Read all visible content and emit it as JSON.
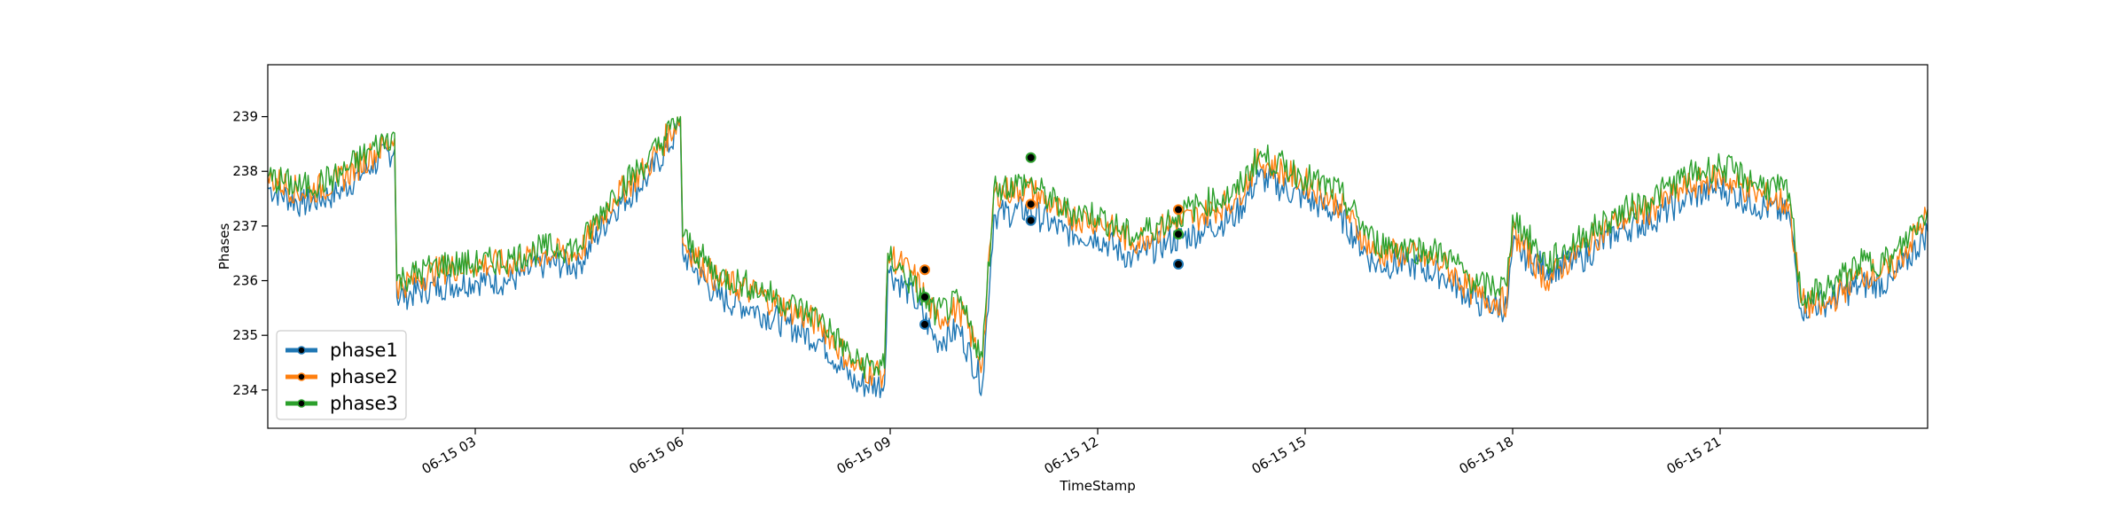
{
  "chart_data": {
    "type": "line",
    "title": "",
    "xlabel": "TimeStamp",
    "ylabel": "Phases",
    "grid": false,
    "legend_position": "lower-left",
    "x_range": [
      "2023-06-15 00:00",
      "2023-06-16 00:00"
    ],
    "ylim": [
      233.3,
      239.95
    ],
    "y_ticks": [
      234,
      235,
      236,
      237,
      238,
      239
    ],
    "x_ticks": [
      {
        "t": "2023-06-15 03:00",
        "label": "06-15 03"
      },
      {
        "t": "2023-06-15 06:00",
        "label": "06-15 06"
      },
      {
        "t": "2023-06-15 09:00",
        "label": "06-15 09"
      },
      {
        "t": "2023-06-15 12:00",
        "label": "06-15 12"
      },
      {
        "t": "2023-06-15 15:00",
        "label": "06-15 15"
      },
      {
        "t": "2023-06-15 18:00",
        "label": "06-15 18"
      },
      {
        "t": "2023-06-15 21:00",
        "label": "06-15 21"
      }
    ],
    "series": [
      {
        "name": "phase1",
        "color": "#1f77b4",
        "points": [
          [
            "2023-06-15 00:00",
            237.7
          ],
          [
            "2023-06-15 00:30",
            237.4
          ],
          [
            "2023-06-15 01:00",
            237.6
          ],
          [
            "2023-06-15 01:30",
            238.1
          ],
          [
            "2023-06-15 01:50",
            238.4
          ],
          [
            "2023-06-15 01:52",
            235.7
          ],
          [
            "2023-06-15 02:30",
            235.9
          ],
          [
            "2023-06-15 03:00",
            236.0
          ],
          [
            "2023-06-15 03:30",
            236.0
          ],
          [
            "2023-06-15 04:00",
            236.3
          ],
          [
            "2023-06-15 04:30",
            236.3
          ],
          [
            "2023-06-15 05:00",
            237.3
          ],
          [
            "2023-06-15 05:30",
            237.9
          ],
          [
            "2023-06-15 05:58",
            238.8
          ],
          [
            "2023-06-15 06:00",
            236.5
          ],
          [
            "2023-06-15 06:30",
            235.7
          ],
          [
            "2023-06-15 07:00",
            235.5
          ],
          [
            "2023-06-15 07:30",
            235.2
          ],
          [
            "2023-06-15 08:00",
            234.9
          ],
          [
            "2023-06-15 08:30",
            234.1
          ],
          [
            "2023-06-15 08:55",
            234.1
          ],
          [
            "2023-06-15 08:58",
            236.2
          ],
          [
            "2023-06-15 09:20",
            235.7
          ],
          [
            "2023-06-15 09:40",
            234.9
          ],
          [
            "2023-06-15 10:00",
            235.1
          ],
          [
            "2023-06-15 10:20",
            234.1
          ],
          [
            "2023-06-15 10:30",
            237.2
          ],
          [
            "2023-06-15 11:00",
            237.3
          ],
          [
            "2023-06-15 11:30",
            236.9
          ],
          [
            "2023-06-15 12:00",
            236.8
          ],
          [
            "2023-06-15 12:30",
            236.4
          ],
          [
            "2023-06-15 13:00",
            236.7
          ],
          [
            "2023-06-15 13:30",
            236.9
          ],
          [
            "2023-06-15 14:00",
            237.2
          ],
          [
            "2023-06-15 14:20",
            237.9
          ],
          [
            "2023-06-15 15:00",
            237.5
          ],
          [
            "2023-06-15 15:30",
            237.2
          ],
          [
            "2023-06-15 16:00",
            236.3
          ],
          [
            "2023-06-15 16:30",
            236.3
          ],
          [
            "2023-06-15 17:00",
            236.1
          ],
          [
            "2023-06-15 17:30",
            235.6
          ],
          [
            "2023-06-15 17:55",
            235.5
          ],
          [
            "2023-06-15 18:00",
            236.6
          ],
          [
            "2023-06-15 18:30",
            236.2
          ],
          [
            "2023-06-15 19:00",
            236.4
          ],
          [
            "2023-06-15 19:30",
            236.9
          ],
          [
            "2023-06-15 20:00",
            237.1
          ],
          [
            "2023-06-15 20:30",
            237.5
          ],
          [
            "2023-06-15 21:00",
            237.7
          ],
          [
            "2023-06-15 21:30",
            237.4
          ],
          [
            "2023-06-15 22:00",
            237.2
          ],
          [
            "2023-06-15 22:10",
            235.5
          ],
          [
            "2023-06-15 22:30",
            235.6
          ],
          [
            "2023-06-15 23:00",
            235.9
          ],
          [
            "2023-06-15 23:30",
            236.0
          ],
          [
            "2023-06-16 00:00",
            236.9
          ]
        ]
      },
      {
        "name": "phase2",
        "color": "#ff7f0e",
        "points": [
          [
            "2023-06-15 00:00",
            237.9
          ],
          [
            "2023-06-15 00:30",
            237.6
          ],
          [
            "2023-06-15 01:00",
            237.8
          ],
          [
            "2023-06-15 01:30",
            238.3
          ],
          [
            "2023-06-15 01:50",
            238.6
          ],
          [
            "2023-06-15 01:52",
            235.9
          ],
          [
            "2023-06-15 02:30",
            236.2
          ],
          [
            "2023-06-15 03:00",
            236.3
          ],
          [
            "2023-06-15 03:30",
            236.3
          ],
          [
            "2023-06-15 04:00",
            236.5
          ],
          [
            "2023-06-15 04:30",
            236.5
          ],
          [
            "2023-06-15 05:00",
            237.5
          ],
          [
            "2023-06-15 05:30",
            238.1
          ],
          [
            "2023-06-15 05:58",
            239.0
          ],
          [
            "2023-06-15 06:00",
            236.7
          ],
          [
            "2023-06-15 06:30",
            236.0
          ],
          [
            "2023-06-15 07:00",
            235.8
          ],
          [
            "2023-06-15 07:30",
            235.5
          ],
          [
            "2023-06-15 08:00",
            235.2
          ],
          [
            "2023-06-15 08:30",
            234.4
          ],
          [
            "2023-06-15 08:55",
            234.3
          ],
          [
            "2023-06-15 08:58",
            236.5
          ],
          [
            "2023-06-15 09:20",
            236.1
          ],
          [
            "2023-06-15 09:40",
            235.3
          ],
          [
            "2023-06-15 10:00",
            235.5
          ],
          [
            "2023-06-15 10:20",
            234.5
          ],
          [
            "2023-06-15 10:30",
            237.6
          ],
          [
            "2023-06-15 11:00",
            237.7
          ],
          [
            "2023-06-15 11:30",
            237.2
          ],
          [
            "2023-06-15 12:00",
            237.1
          ],
          [
            "2023-06-15 12:30",
            236.7
          ],
          [
            "2023-06-15 13:00",
            237.0
          ],
          [
            "2023-06-15 13:30",
            237.2
          ],
          [
            "2023-06-15 14:00",
            237.5
          ],
          [
            "2023-06-15 14:20",
            238.2
          ],
          [
            "2023-06-15 15:00",
            237.8
          ],
          [
            "2023-06-15 15:30",
            237.4
          ],
          [
            "2023-06-15 16:00",
            236.5
          ],
          [
            "2023-06-15 16:30",
            236.5
          ],
          [
            "2023-06-15 17:00",
            236.3
          ],
          [
            "2023-06-15 17:30",
            235.7
          ],
          [
            "2023-06-15 17:55",
            235.6
          ],
          [
            "2023-06-15 18:00",
            236.9
          ],
          [
            "2023-06-15 18:30",
            236.0
          ],
          [
            "2023-06-15 19:00",
            236.6
          ],
          [
            "2023-06-15 19:30",
            237.1
          ],
          [
            "2023-06-15 20:00",
            237.3
          ],
          [
            "2023-06-15 20:30",
            237.7
          ],
          [
            "2023-06-15 21:00",
            237.9
          ],
          [
            "2023-06-15 21:30",
            237.6
          ],
          [
            "2023-06-15 22:00",
            237.4
          ],
          [
            "2023-06-15 22:10",
            235.6
          ],
          [
            "2023-06-15 22:30",
            235.5
          ],
          [
            "2023-06-15 23:00",
            236.1
          ],
          [
            "2023-06-15 23:30",
            236.2
          ],
          [
            "2023-06-16 00:00",
            237.2
          ]
        ]
      },
      {
        "name": "phase3",
        "color": "#2ca02c",
        "points": [
          [
            "2023-06-15 00:00",
            237.9
          ],
          [
            "2023-06-15 00:30",
            237.7
          ],
          [
            "2023-06-15 01:00",
            237.9
          ],
          [
            "2023-06-15 01:30",
            238.4
          ],
          [
            "2023-06-15 01:50",
            238.7
          ],
          [
            "2023-06-15 01:52",
            236.0
          ],
          [
            "2023-06-15 02:30",
            236.3
          ],
          [
            "2023-06-15 03:00",
            236.3
          ],
          [
            "2023-06-15 03:30",
            236.4
          ],
          [
            "2023-06-15 04:00",
            236.6
          ],
          [
            "2023-06-15 04:30",
            236.6
          ],
          [
            "2023-06-15 05:00",
            237.6
          ],
          [
            "2023-06-15 05:30",
            238.2
          ],
          [
            "2023-06-15 05:58",
            239.0
          ],
          [
            "2023-06-15 06:00",
            236.8
          ],
          [
            "2023-06-15 06:30",
            236.1
          ],
          [
            "2023-06-15 07:00",
            235.9
          ],
          [
            "2023-06-15 07:30",
            235.6
          ],
          [
            "2023-06-15 08:00",
            235.3
          ],
          [
            "2023-06-15 08:30",
            234.5
          ],
          [
            "2023-06-15 08:55",
            234.4
          ],
          [
            "2023-06-15 08:58",
            236.5
          ],
          [
            "2023-06-15 09:20",
            235.9
          ],
          [
            "2023-06-15 09:40",
            235.4
          ],
          [
            "2023-06-15 10:00",
            235.6
          ],
          [
            "2023-06-15 10:20",
            234.6
          ],
          [
            "2023-06-15 10:30",
            237.7
          ],
          [
            "2023-06-15 11:00",
            237.8
          ],
          [
            "2023-06-15 11:30",
            237.3
          ],
          [
            "2023-06-15 12:00",
            237.2
          ],
          [
            "2023-06-15 12:30",
            236.8
          ],
          [
            "2023-06-15 13:00",
            237.1
          ],
          [
            "2023-06-15 13:30",
            237.4
          ],
          [
            "2023-06-15 14:00",
            237.6
          ],
          [
            "2023-06-15 14:20",
            238.3
          ],
          [
            "2023-06-15 15:00",
            237.9
          ],
          [
            "2023-06-15 15:30",
            237.6
          ],
          [
            "2023-06-15 16:00",
            236.7
          ],
          [
            "2023-06-15 16:30",
            236.6
          ],
          [
            "2023-06-15 17:00",
            236.5
          ],
          [
            "2023-06-15 17:30",
            235.9
          ],
          [
            "2023-06-15 17:55",
            235.9
          ],
          [
            "2023-06-15 18:00",
            237.2
          ],
          [
            "2023-06-15 18:30",
            236.3
          ],
          [
            "2023-06-15 19:00",
            236.8
          ],
          [
            "2023-06-15 19:30",
            237.2
          ],
          [
            "2023-06-15 20:00",
            237.5
          ],
          [
            "2023-06-15 20:30",
            237.9
          ],
          [
            "2023-06-15 21:00",
            238.1
          ],
          [
            "2023-06-15 21:30",
            237.8
          ],
          [
            "2023-06-15 22:00",
            237.6
          ],
          [
            "2023-06-15 22:10",
            235.7
          ],
          [
            "2023-06-15 22:30",
            235.8
          ],
          [
            "2023-06-15 23:00",
            236.3
          ],
          [
            "2023-06-15 23:30",
            236.4
          ],
          [
            "2023-06-16 00:00",
            237.3
          ]
        ]
      }
    ],
    "markers": [
      {
        "series": "phase1",
        "t": "2023-06-15 09:30",
        "y": 235.2
      },
      {
        "series": "phase2",
        "t": "2023-06-15 09:30",
        "y": 236.2
      },
      {
        "series": "phase3",
        "t": "2023-06-15 09:30",
        "y": 235.7
      },
      {
        "series": "phase1",
        "t": "2023-06-15 11:02",
        "y": 237.1
      },
      {
        "series": "phase2",
        "t": "2023-06-15 11:02",
        "y": 237.4
      },
      {
        "series": "phase3",
        "t": "2023-06-15 11:02",
        "y": 238.25
      },
      {
        "series": "phase1",
        "t": "2023-06-15 13:10",
        "y": 236.3
      },
      {
        "series": "phase2",
        "t": "2023-06-15 13:10",
        "y": 237.3
      },
      {
        "series": "phase3",
        "t": "2023-06-15 13:10",
        "y": 236.85
      }
    ]
  }
}
